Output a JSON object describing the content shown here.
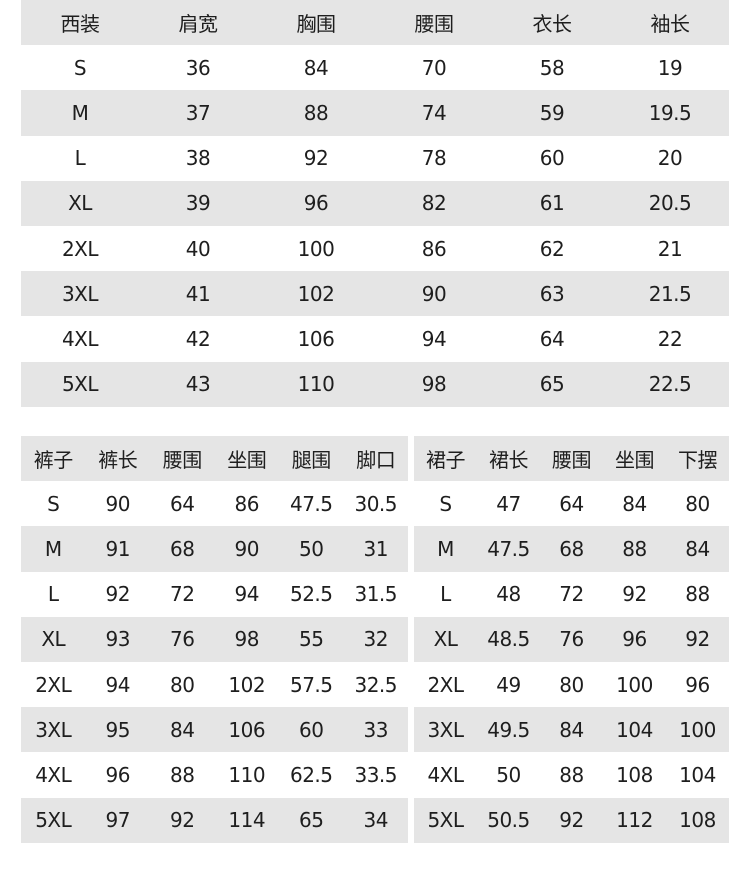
{
  "suit": {
    "headers": [
      "西装",
      "肩宽",
      "胸围",
      "腰围",
      "衣长",
      "袖长"
    ],
    "rows": [
      [
        "S",
        "36",
        "84",
        "70",
        "58",
        "19"
      ],
      [
        "M",
        "37",
        "88",
        "74",
        "59",
        "19.5"
      ],
      [
        "L",
        "38",
        "92",
        "78",
        "60",
        "20"
      ],
      [
        "XL",
        "39",
        "96",
        "82",
        "61",
        "20.5"
      ],
      [
        "2XL",
        "40",
        "100",
        "86",
        "62",
        "21"
      ],
      [
        "3XL",
        "41",
        "102",
        "90",
        "63",
        "21.5"
      ],
      [
        "4XL",
        "42",
        "106",
        "94",
        "64",
        "22"
      ],
      [
        "5XL",
        "43",
        "110",
        "98",
        "65",
        "22.5"
      ]
    ]
  },
  "pants": {
    "headers": [
      "裤子",
      "裤长",
      "腰围",
      "坐围",
      "腿围",
      "脚口"
    ],
    "rows": [
      [
        "S",
        "90",
        "64",
        "86",
        "47.5",
        "30.5"
      ],
      [
        "M",
        "91",
        "68",
        "90",
        "50",
        "31"
      ],
      [
        "L",
        "92",
        "72",
        "94",
        "52.5",
        "31.5"
      ],
      [
        "XL",
        "93",
        "76",
        "98",
        "55",
        "32"
      ],
      [
        "2XL",
        "94",
        "80",
        "102",
        "57.5",
        "32.5"
      ],
      [
        "3XL",
        "95",
        "84",
        "106",
        "60",
        "33"
      ],
      [
        "4XL",
        "96",
        "88",
        "110",
        "62.5",
        "33.5"
      ],
      [
        "5XL",
        "97",
        "92",
        "114",
        "65",
        "34"
      ]
    ]
  },
  "skirt": {
    "headers": [
      "裙子",
      "裙长",
      "腰围",
      "坐围",
      "下摆"
    ],
    "rows": [
      [
        "S",
        "47",
        "64",
        "84",
        "80"
      ],
      [
        "M",
        "47.5",
        "68",
        "88",
        "84"
      ],
      [
        "L",
        "48",
        "72",
        "92",
        "88"
      ],
      [
        "XL",
        "48.5",
        "76",
        "96",
        "92"
      ],
      [
        "2XL",
        "49",
        "80",
        "100",
        "96"
      ],
      [
        "3XL",
        "49.5",
        "84",
        "104",
        "100"
      ],
      [
        "4XL",
        "50",
        "88",
        "108",
        "104"
      ],
      [
        "5XL",
        "50.5",
        "92",
        "112",
        "108"
      ]
    ]
  },
  "colors": {
    "stripe": "#e5e5e5",
    "text": "#1e1e1e"
  }
}
